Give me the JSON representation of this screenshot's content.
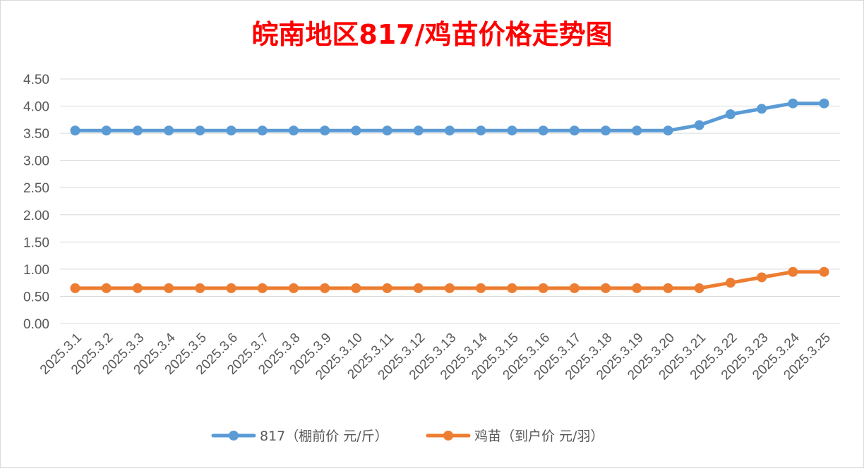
{
  "chart_data": {
    "type": "line",
    "title": "皖南地区817/鸡苗价格走势图",
    "title_color": "#ff0000",
    "xlabel": "",
    "ylabel": "",
    "ylim": [
      0,
      4.5
    ],
    "y_ticks": [
      "0.00",
      "0.50",
      "1.00",
      "1.50",
      "2.00",
      "2.50",
      "3.00",
      "3.50",
      "4.00",
      "4.50"
    ],
    "grid": true,
    "legend_position": "bottom",
    "categories": [
      "2025.3.1",
      "2025.3.2",
      "2025.3.3",
      "2025.3.4",
      "2025.3.5",
      "2025.3.6",
      "2025.3.7",
      "2025.3.8",
      "2025.3.9",
      "2025.3.10",
      "2025.3.11",
      "2025.3.12",
      "2025.3.13",
      "2025.3.14",
      "2025.3.15",
      "2025.3.16",
      "2025.3.17",
      "2025.3.18",
      "2025.3.19",
      "2025.3.20",
      "2025.3.21",
      "2025.3.22",
      "2025.3.23",
      "2025.3.24",
      "2025.3.25"
    ],
    "series": [
      {
        "name": "817（棚前价 元/斤）",
        "color": "#5b9bd5",
        "values": [
          3.55,
          3.55,
          3.55,
          3.55,
          3.55,
          3.55,
          3.55,
          3.55,
          3.55,
          3.55,
          3.55,
          3.55,
          3.55,
          3.55,
          3.55,
          3.55,
          3.55,
          3.55,
          3.55,
          3.55,
          3.65,
          3.85,
          3.95,
          4.05,
          4.05
        ]
      },
      {
        "name": "鸡苗（到户价 元/羽）",
        "color": "#ed7d31",
        "values": [
          0.65,
          0.65,
          0.65,
          0.65,
          0.65,
          0.65,
          0.65,
          0.65,
          0.65,
          0.65,
          0.65,
          0.65,
          0.65,
          0.65,
          0.65,
          0.65,
          0.65,
          0.65,
          0.65,
          0.65,
          0.65,
          0.75,
          0.85,
          0.95,
          0.95
        ]
      }
    ]
  }
}
